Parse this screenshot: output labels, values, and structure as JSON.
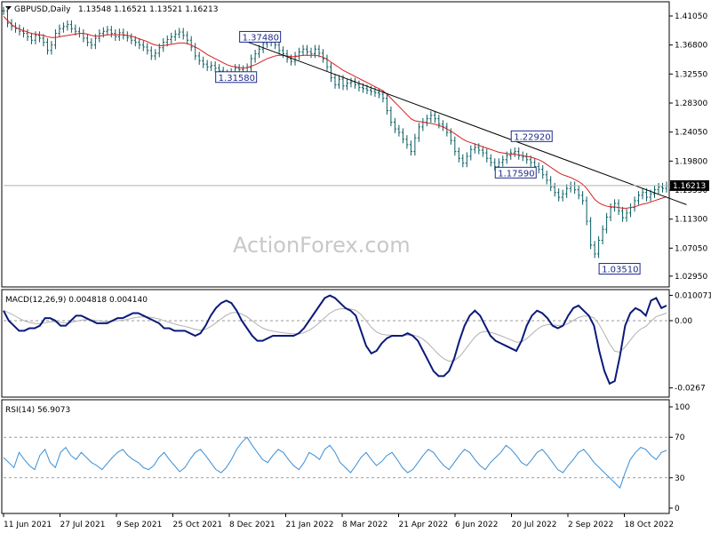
{
  "header": {
    "symbol_text": "GBPUSD,Daily",
    "ohlc_text": "1.13548 1.16521 1.13521 1.16213",
    "watermark": "ActionForex.com"
  },
  "colors": {
    "price_bar": "#0a5b5f",
    "ma_line": "#d62020",
    "trend_line": "#000000",
    "macd_line": "#0b1a7a",
    "signal_line": "#b0b0b0",
    "rsi_line": "#3a8fd6",
    "grid_dashed": "#9a9a9a",
    "last_price_box": "#000000"
  },
  "chart_data": [
    {
      "type": "line",
      "panel": "price",
      "title": "GBPUSD,Daily",
      "ylim": [
        1.015,
        1.43
      ],
      "y_ticks": [
        "1.41050",
        "1.36800",
        "1.32550",
        "1.28300",
        "1.24050",
        "1.19800",
        "1.15550",
        "1.11300",
        "1.07050",
        "1.02950"
      ],
      "y_tick_values": [
        1.4105,
        1.368,
        1.3255,
        1.283,
        1.2405,
        1.198,
        1.1555,
        1.113,
        1.0705,
        1.0295
      ],
      "x_labels": [
        "11 Jun 2021",
        "27 Jul 2021",
        "9 Sep 2021",
        "25 Oct 2021",
        "8 Dec 2021",
        "21 Jan 2022",
        "8 Mar 2022",
        "21 Apr 2022",
        "6 Jun 2022",
        "20 Jul 2022",
        "2 Sep 2022",
        "18 Oct 2022"
      ],
      "last_price": "1.16213",
      "last_price_value": 1.16213,
      "series": [
        {
          "role": "close",
          "values": [
            1.418,
            1.4,
            1.395,
            1.392,
            1.388,
            1.385,
            1.38,
            1.375,
            1.382,
            1.378,
            1.372,
            1.36,
            1.368,
            1.385,
            1.392,
            1.395,
            1.398,
            1.392,
            1.388,
            1.385,
            1.378,
            1.372,
            1.368,
            1.378,
            1.385,
            1.388,
            1.39,
            1.385,
            1.38,
            1.386,
            1.382,
            1.379,
            1.375,
            1.372,
            1.368,
            1.365,
            1.36,
            1.352,
            1.356,
            1.364,
            1.372,
            1.376,
            1.38,
            1.384,
            1.387,
            1.382,
            1.375,
            1.365,
            1.352,
            1.345,
            1.34,
            1.336,
            1.338,
            1.334,
            1.33,
            1.326,
            1.322,
            1.328,
            1.334,
            1.332,
            1.325,
            1.335,
            1.348,
            1.355,
            1.362,
            1.37,
            1.375,
            1.372,
            1.368,
            1.36,
            1.355,
            1.348,
            1.344,
            1.352,
            1.358,
            1.362,
            1.358,
            1.355,
            1.362,
            1.356,
            1.348,
            1.336,
            1.32,
            1.31,
            1.318,
            1.308,
            1.312,
            1.314,
            1.31,
            1.306,
            1.304,
            1.302,
            1.3,
            1.298,
            1.296,
            1.29,
            1.272,
            1.255,
            1.245,
            1.24,
            1.23,
            1.222,
            1.212,
            1.232,
            1.248,
            1.255,
            1.26,
            1.265,
            1.26,
            1.252,
            1.248,
            1.24,
            1.228,
            1.212,
            1.202,
            1.195,
            1.205,
            1.215,
            1.218,
            1.214,
            1.21,
            1.202,
            1.196,
            1.19,
            1.196,
            1.2,
            1.206,
            1.21,
            1.212,
            1.206,
            1.204,
            1.2,
            1.196,
            1.19,
            1.186,
            1.178,
            1.17,
            1.16,
            1.152,
            1.145,
            1.15,
            1.158,
            1.162,
            1.156,
            1.148,
            1.14,
            1.11,
            1.075,
            1.062,
            1.082,
            1.098,
            1.116,
            1.13,
            1.136,
            1.125,
            1.115,
            1.122,
            1.13,
            1.14,
            1.148,
            1.152,
            1.145,
            1.15,
            1.156,
            1.16,
            1.158,
            1.162
          ]
        },
        {
          "role": "moving_average",
          "values": [
            1.41,
            1.404,
            1.398,
            1.394,
            1.391,
            1.389,
            1.387,
            1.385,
            1.384,
            1.383,
            1.382,
            1.38,
            1.379,
            1.379,
            1.38,
            1.381,
            1.382,
            1.383,
            1.384,
            1.385,
            1.385,
            1.384,
            1.382,
            1.381,
            1.381,
            1.382,
            1.383,
            1.383,
            1.383,
            1.383,
            1.383,
            1.382,
            1.381,
            1.379,
            1.377,
            1.375,
            1.373,
            1.37,
            1.368,
            1.367,
            1.367,
            1.368,
            1.369,
            1.37,
            1.371,
            1.371,
            1.37,
            1.368,
            1.365,
            1.362,
            1.358,
            1.354,
            1.351,
            1.348,
            1.345,
            1.342,
            1.339,
            1.337,
            1.336,
            1.335,
            1.334,
            1.335,
            1.337,
            1.339,
            1.342,
            1.345,
            1.348,
            1.35,
            1.352,
            1.353,
            1.353,
            1.352,
            1.351,
            1.351,
            1.352,
            1.353,
            1.353,
            1.353,
            1.353,
            1.352,
            1.35,
            1.347,
            1.343,
            1.339,
            1.335,
            1.331,
            1.328,
            1.325,
            1.322,
            1.319,
            1.316,
            1.313,
            1.31,
            1.307,
            1.304,
            1.301,
            1.296,
            1.29,
            1.284,
            1.278,
            1.272,
            1.266,
            1.26,
            1.257,
            1.256,
            1.255,
            1.254,
            1.253,
            1.252,
            1.25,
            1.248,
            1.245,
            1.242,
            1.238,
            1.234,
            1.23,
            1.227,
            1.225,
            1.223,
            1.221,
            1.219,
            1.217,
            1.215,
            1.213,
            1.211,
            1.21,
            1.209,
            1.208,
            1.208,
            1.207,
            1.206,
            1.205,
            1.204,
            1.202,
            1.2,
            1.197,
            1.193,
            1.189,
            1.185,
            1.181,
            1.178,
            1.176,
            1.174,
            1.171,
            1.168,
            1.164,
            1.158,
            1.15,
            1.142,
            1.137,
            1.134,
            1.132,
            1.131,
            1.131,
            1.13,
            1.129,
            1.129,
            1.13,
            1.131,
            1.133,
            1.135,
            1.136,
            1.138,
            1.14,
            1.142,
            1.144,
            1.146
          ]
        }
      ],
      "trend_line": {
        "from": {
          "x": 60,
          "y": 1.3748
        },
        "to": {
          "x": 166,
          "y": 1.145
        }
      },
      "annotations": [
        {
          "text": "1.37480",
          "x": 60,
          "y": 1.3748
        },
        {
          "text": "1.31580",
          "x": 54,
          "y": 1.3158
        },
        {
          "text": "1.22920",
          "x": 128,
          "y": 1.2292
        },
        {
          "text": "1.17590",
          "x": 124,
          "y": 1.1759
        },
        {
          "text": "1.03510",
          "x": 150,
          "y": 1.0351
        }
      ]
    },
    {
      "type": "line",
      "panel": "macd",
      "title": "MACD(12,26,9) 0.004818 0.004140",
      "ylim": [
        -0.03,
        0.012
      ],
      "y_ticks": [
        "0.010071",
        "0.00",
        "-0.0267"
      ],
      "y_tick_values": [
        0.010071,
        0.0,
        -0.0267
      ],
      "zero_line": 0.0,
      "series": [
        {
          "role": "macd",
          "values": [
            0.004,
            0.0,
            -0.002,
            -0.004,
            -0.004,
            -0.003,
            -0.003,
            -0.002,
            0.001,
            0.001,
            0.0,
            -0.002,
            -0.002,
            0.0,
            0.002,
            0.002,
            0.001,
            0.0,
            -0.001,
            -0.001,
            -0.001,
            0.0,
            0.001,
            0.001,
            0.002,
            0.003,
            0.003,
            0.002,
            0.001,
            0.0,
            -0.001,
            -0.003,
            -0.003,
            -0.004,
            -0.004,
            -0.004,
            -0.005,
            -0.006,
            -0.005,
            -0.002,
            0.002,
            0.005,
            0.007,
            0.008,
            0.007,
            0.004,
            0.0,
            -0.003,
            -0.006,
            -0.008,
            -0.008,
            -0.007,
            -0.006,
            -0.006,
            -0.006,
            -0.006,
            -0.006,
            -0.005,
            -0.003,
            0.0,
            0.003,
            0.006,
            0.009,
            0.01,
            0.009,
            0.007,
            0.005,
            0.004,
            0.002,
            -0.004,
            -0.01,
            -0.013,
            -0.012,
            -0.009,
            -0.007,
            -0.006,
            -0.006,
            -0.006,
            -0.005,
            -0.006,
            -0.008,
            -0.012,
            -0.016,
            -0.02,
            -0.022,
            -0.022,
            -0.02,
            -0.015,
            -0.008,
            -0.002,
            0.002,
            0.004,
            0.002,
            -0.002,
            -0.006,
            -0.008,
            -0.009,
            -0.01,
            -0.011,
            -0.012,
            -0.008,
            -0.002,
            0.002,
            0.004,
            0.003,
            0.001,
            -0.002,
            -0.003,
            -0.002,
            0.002,
            0.005,
            0.006,
            0.004,
            0.002,
            -0.002,
            -0.012,
            -0.02,
            -0.025,
            -0.024,
            -0.014,
            -0.002,
            0.003,
            0.005,
            0.004,
            0.002,
            0.008,
            0.009,
            0.005,
            0.006
          ]
        }
      ]
    },
    {
      "type": "line",
      "panel": "rsi",
      "title": "RSI(14) 56.9073",
      "ylim": [
        0,
        100
      ],
      "y_ticks": [
        "100",
        "70",
        "30",
        "0"
      ],
      "y_tick_values": [
        100,
        70,
        30,
        0
      ],
      "levels": [
        70,
        30
      ],
      "series": [
        {
          "role": "rsi",
          "values": [
            50,
            45,
            40,
            55,
            48,
            42,
            38,
            52,
            58,
            45,
            40,
            55,
            60,
            52,
            48,
            55,
            50,
            45,
            42,
            38,
            44,
            50,
            55,
            58,
            52,
            48,
            45,
            40,
            38,
            42,
            50,
            55,
            48,
            42,
            36,
            40,
            48,
            55,
            58,
            52,
            45,
            38,
            35,
            40,
            48,
            58,
            65,
            70,
            62,
            55,
            48,
            45,
            52,
            58,
            55,
            48,
            42,
            38,
            45,
            55,
            52,
            48,
            58,
            62,
            55,
            45,
            40,
            35,
            42,
            50,
            55,
            48,
            42,
            46,
            52,
            55,
            48,
            40,
            35,
            38,
            45,
            52,
            58,
            55,
            48,
            42,
            38,
            45,
            52,
            58,
            55,
            48,
            42,
            38,
            45,
            50,
            55,
            62,
            58,
            52,
            45,
            42,
            48,
            55,
            58,
            52,
            45,
            38,
            35,
            42,
            48,
            55,
            58,
            52,
            45,
            40,
            35,
            30,
            25,
            20,
            35,
            48,
            55,
            60,
            58,
            52,
            48,
            55,
            57
          ]
        }
      ]
    }
  ]
}
